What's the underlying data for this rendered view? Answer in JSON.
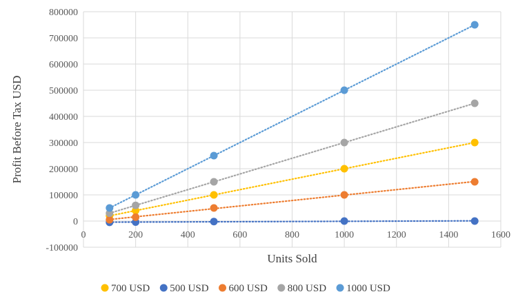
{
  "chart_data": {
    "type": "scatter",
    "title": "",
    "xlabel": "Units Sold",
    "ylabel": "Profit Before Tax USD",
    "xlim": [
      0,
      1600
    ],
    "ylim": [
      -100000,
      800000
    ],
    "x_ticks": [
      0,
      200,
      400,
      600,
      800,
      1000,
      1200,
      1400,
      1600
    ],
    "y_ticks": [
      -100000,
      0,
      100000,
      200000,
      300000,
      400000,
      500000,
      600000,
      700000,
      800000
    ],
    "grid": true,
    "legend_position": "bottom",
    "trendline": "linear-dotted",
    "x": [
      100,
      200,
      500,
      1000,
      1500
    ],
    "series": [
      {
        "name": "700 USD",
        "color": "#ffc000",
        "values": [
          20000,
          40000,
          100000,
          200000,
          300000
        ]
      },
      {
        "name": "500 USD",
        "color": "#4472c4",
        "values": [
          -5000,
          -4000,
          -2000,
          0,
          0
        ]
      },
      {
        "name": "600 USD",
        "color": "#ed7d31",
        "values": [
          5000,
          15000,
          50000,
          100000,
          150000
        ]
      },
      {
        "name": "800 USD",
        "color": "#a5a5a5",
        "values": [
          30000,
          60000,
          150000,
          300000,
          450000
        ]
      },
      {
        "name": "1000 USD",
        "color": "#5b9bd5",
        "values": [
          50000,
          100000,
          250000,
          500000,
          750000
        ]
      }
    ]
  }
}
